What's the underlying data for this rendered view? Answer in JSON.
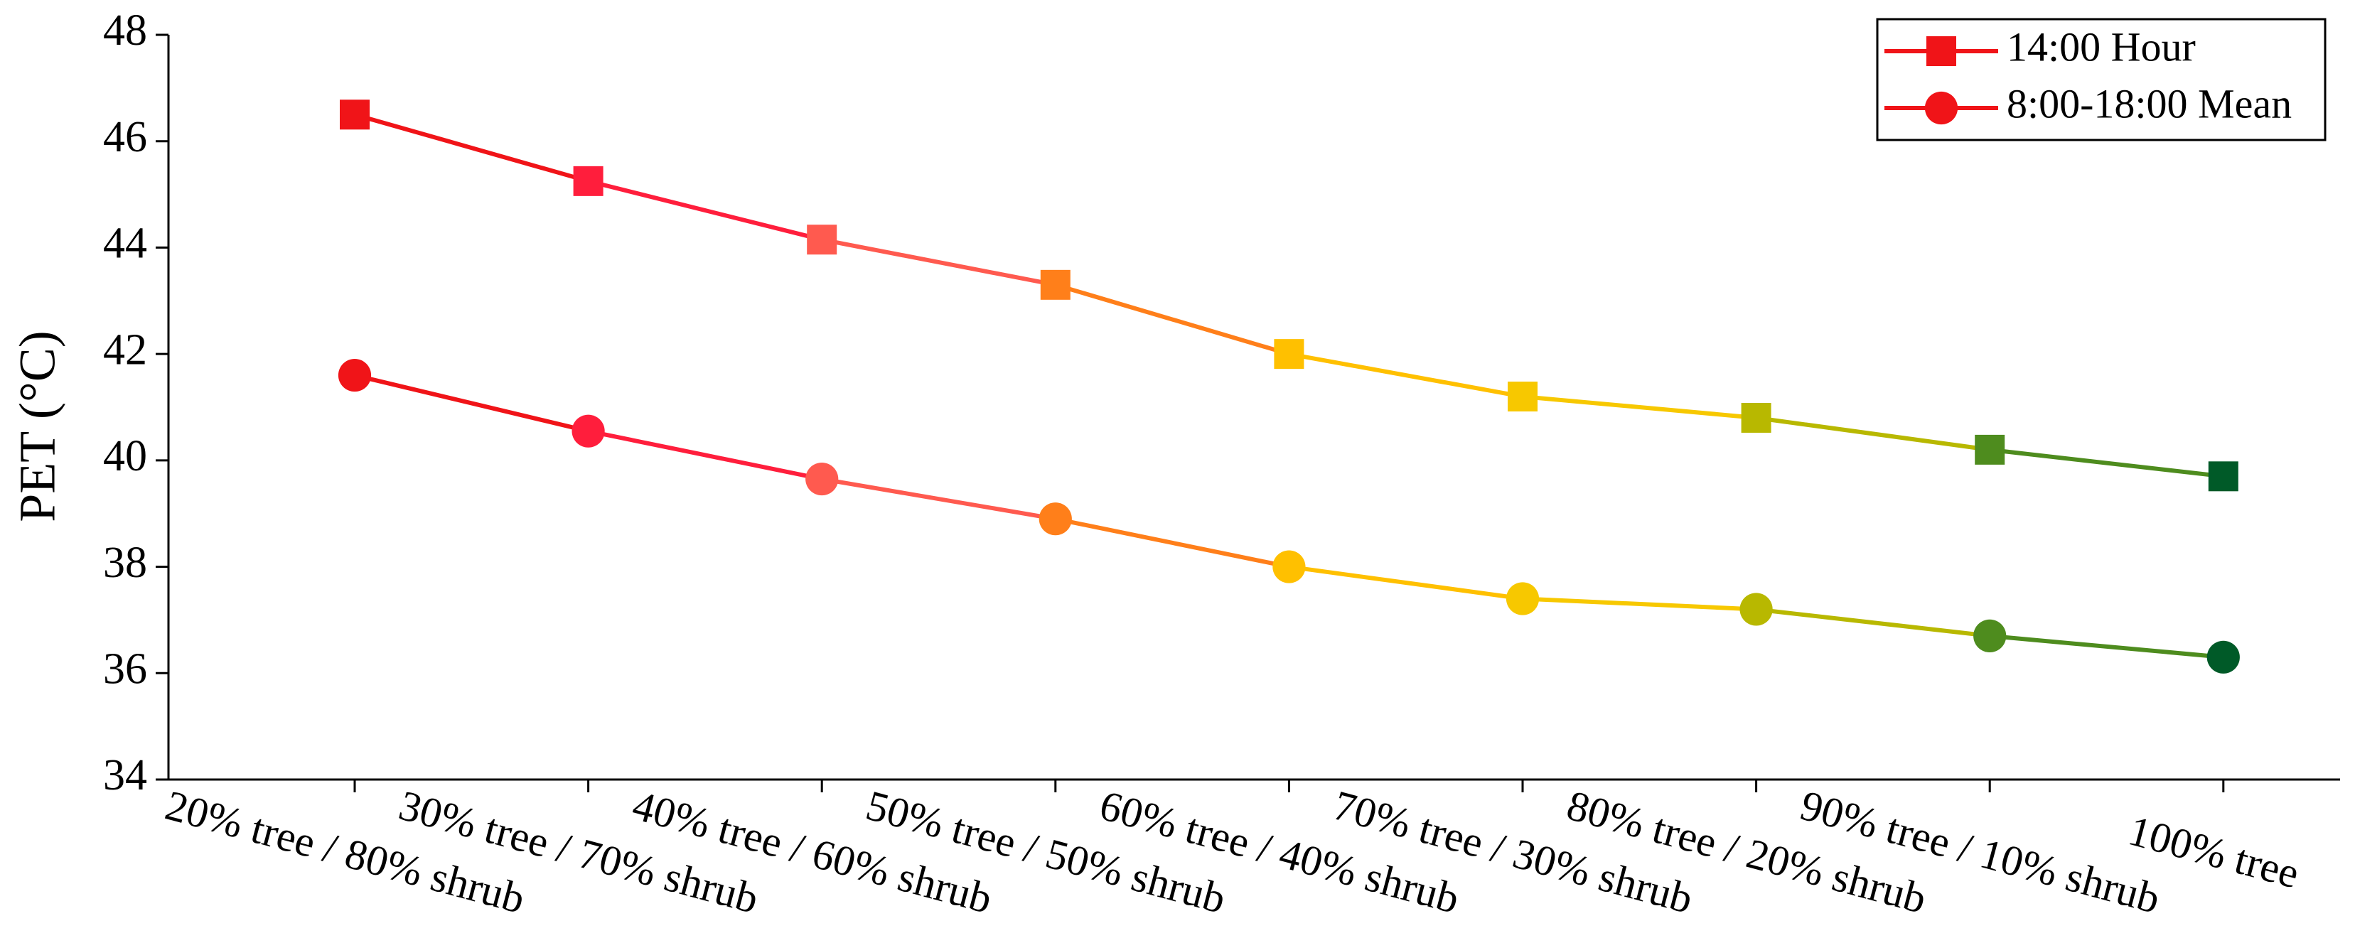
{
  "chart_data": {
    "type": "line",
    "y_label": "PET (°C)",
    "categories": [
      "20% tree / 80% shrub",
      "30% tree / 70% shrub",
      "40% tree / 60% shrub",
      "50% tree / 50% shrub",
      "60% tree / 40% shrub",
      "70% tree / 30% shrub",
      "80% tree / 20% shrub",
      "90% tree / 10% shrub",
      "100% tree"
    ],
    "series": [
      {
        "name": "14:00 Hour",
        "color": "#f01418",
        "marker": "square",
        "colors": [
          "#f01418",
          "#ff1e3c",
          "#ff5a4f",
          "#ff7f1a",
          "#ffc000",
          "#f7c800",
          "#b8b800",
          "#4e8c1e",
          "#005a28"
        ],
        "values": [
          46.5,
          45.25,
          44.15,
          43.3,
          42.0,
          41.2,
          40.8,
          40.2,
          39.7
        ]
      },
      {
        "name": "8:00-18:00 Mean",
        "color": "#f01418",
        "marker": "circle",
        "colors": [
          "#f01418",
          "#ff1e3c",
          "#ff5a4f",
          "#ff7f1a",
          "#ffc000",
          "#f7c800",
          "#b8b800",
          "#4e8c1e",
          "#005a28"
        ],
        "values": [
          41.6,
          40.55,
          39.65,
          38.9,
          38.0,
          37.4,
          37.2,
          36.7,
          36.3
        ]
      }
    ],
    "ylim": [
      34,
      48
    ],
    "yticks": [
      34,
      36,
      38,
      40,
      42,
      44,
      46,
      48
    ],
    "legend": "top-right"
  }
}
